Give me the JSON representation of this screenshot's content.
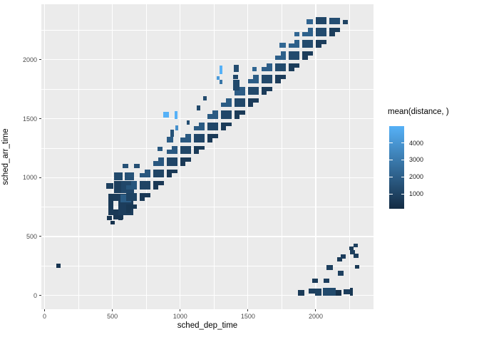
{
  "figure": {
    "background": "#FFFFFF",
    "panel_background": "#EBEBEB",
    "gridline_color": "#FFFFFF",
    "axis_text_color": "#4D4D4D",
    "axis_title_color": "#000000"
  },
  "chart_data": {
    "type": "heatmap",
    "title": "",
    "xlabel": "sched_dep_time",
    "ylabel": "sched_arr_time",
    "x_ticks": [
      0,
      500,
      1000,
      1500,
      2000
    ],
    "y_ticks": [
      0,
      500,
      1000,
      1500,
      2000
    ],
    "x_minor_ticks": [
      250,
      750,
      1250,
      1750,
      2250
    ],
    "y_minor_ticks": [
      250,
      750,
      1250,
      1750,
      2250
    ],
    "x_domain": [
      -24,
      2426
    ],
    "y_domain": [
      -117,
      2471
    ],
    "grid": "on",
    "legend": {
      "title": "mean(distance, )",
      "position": "right",
      "ticks": [
        1000,
        2000,
        3000,
        4000
      ],
      "domain": [
        132,
        4983
      ],
      "low_color": "#132B43",
      "high_color": "#56B1F7"
    },
    "tiles": [
      [
        470,
        680,
        505,
        865,
        700
      ],
      [
        545,
        680,
        655,
        865,
        800
      ],
      [
        505,
        680,
        545,
        730,
        650
      ],
      [
        505,
        800,
        545,
        865,
        750
      ],
      [
        560,
        790,
        640,
        858,
        1900
      ],
      [
        505,
        645,
        580,
        682,
        550
      ],
      [
        460,
        640,
        495,
        674,
        480
      ],
      [
        545,
        640,
        578,
        672,
        520
      ],
      [
        485,
        602,
        515,
        634,
        420
      ],
      [
        513,
        870,
        566,
        973,
        850
      ],
      [
        566,
        870,
        658,
        973,
        1150
      ],
      [
        513,
        975,
        575,
        1043,
        1250
      ],
      [
        590,
        975,
        658,
        1043,
        1500
      ],
      [
        455,
        905,
        505,
        955,
        900
      ],
      [
        600,
        700,
        640,
        770,
        590
      ],
      [
        640,
        735,
        678,
        770,
        590
      ],
      [
        600,
        800,
        678,
        870,
        1020
      ],
      [
        600,
        900,
        678,
        938,
        1680
      ],
      [
        640,
        938,
        678,
        970,
        1680
      ],
      [
        620,
        1000,
        656,
        1036,
        1600
      ],
      [
        576,
        1078,
        618,
        1114,
        1500
      ],
      [
        660,
        1080,
        700,
        1116,
        1450
      ],
      [
        700,
        800,
        740,
        870,
        605
      ],
      [
        740,
        835,
        778,
        870,
        605
      ],
      [
        700,
        900,
        778,
        970,
        1040
      ],
      [
        700,
        1000,
        778,
        1038,
        1710
      ],
      [
        740,
        1038,
        778,
        1070,
        1710
      ],
      [
        800,
        900,
        840,
        970,
        620
      ],
      [
        840,
        935,
        878,
        970,
        620
      ],
      [
        800,
        1000,
        878,
        1070,
        1060
      ],
      [
        800,
        1100,
        878,
        1138,
        1740
      ],
      [
        840,
        1138,
        878,
        1170,
        1740
      ],
      [
        835,
        1228,
        872,
        1262,
        1800
      ],
      [
        876,
        1510,
        918,
        1558,
        4983
      ],
      [
        900,
        1000,
        940,
        1070,
        635
      ],
      [
        940,
        1035,
        978,
        1070,
        635
      ],
      [
        900,
        1100,
        978,
        1170,
        1080
      ],
      [
        900,
        1200,
        978,
        1238,
        1770
      ],
      [
        940,
        1238,
        978,
        1270,
        1770
      ],
      [
        900,
        1300,
        948,
        1344,
        1900
      ],
      [
        928,
        1348,
        956,
        1404,
        1500
      ],
      [
        960,
        1498,
        981,
        1565,
        4983
      ],
      [
        963,
        1402,
        986,
        1445,
        3800
      ],
      [
        1000,
        1100,
        1040,
        1170,
        650
      ],
      [
        1040,
        1135,
        1078,
        1170,
        650
      ],
      [
        1000,
        1200,
        1078,
        1270,
        1100
      ],
      [
        1000,
        1300,
        1078,
        1338,
        1800
      ],
      [
        1040,
        1338,
        1078,
        1370,
        1800
      ],
      [
        1049,
        1448,
        1070,
        1483,
        1400
      ],
      [
        1100,
        1200,
        1140,
        1270,
        665
      ],
      [
        1140,
        1235,
        1178,
        1270,
        665
      ],
      [
        1100,
        1300,
        1178,
        1370,
        1120
      ],
      [
        1100,
        1400,
        1178,
        1438,
        1830
      ],
      [
        1140,
        1438,
        1178,
        1470,
        1830
      ],
      [
        1123,
        1573,
        1149,
        1610,
        1200
      ],
      [
        1200,
        1300,
        1240,
        1370,
        680
      ],
      [
        1240,
        1335,
        1278,
        1370,
        680
      ],
      [
        1200,
        1400,
        1278,
        1470,
        1140
      ],
      [
        1200,
        1500,
        1278,
        1538,
        1860
      ],
      [
        1240,
        1538,
        1278,
        1570,
        1860
      ],
      [
        1170,
        1653,
        1196,
        1690,
        1300
      ],
      [
        1291,
        1795,
        1313,
        1830,
        2800
      ],
      [
        1268,
        1830,
        1290,
        1862,
        4200
      ],
      [
        1292,
        1880,
        1314,
        1948,
        4983
      ],
      [
        1300,
        1400,
        1340,
        1470,
        695
      ],
      [
        1340,
        1435,
        1378,
        1470,
        695
      ],
      [
        1300,
        1500,
        1378,
        1570,
        1160
      ],
      [
        1300,
        1600,
        1378,
        1638,
        1890
      ],
      [
        1340,
        1638,
        1378,
        1670,
        1890
      ],
      [
        1390,
        1740,
        1440,
        1828,
        1250
      ],
      [
        1390,
        1838,
        1426,
        1870,
        1150
      ],
      [
        1394,
        1898,
        1430,
        1958,
        1350
      ],
      [
        1400,
        1500,
        1440,
        1570,
        710
      ],
      [
        1440,
        1535,
        1478,
        1570,
        710
      ],
      [
        1400,
        1600,
        1478,
        1670,
        1180
      ],
      [
        1400,
        1700,
        1478,
        1738,
        1920
      ],
      [
        1440,
        1738,
        1478,
        1770,
        1920
      ],
      [
        1500,
        1600,
        1540,
        1670,
        725
      ],
      [
        1540,
        1635,
        1578,
        1670,
        725
      ],
      [
        1500,
        1700,
        1578,
        1770,
        1200
      ],
      [
        1500,
        1800,
        1578,
        1838,
        1950
      ],
      [
        1540,
        1838,
        1578,
        1870,
        1950
      ],
      [
        1530,
        1900,
        1566,
        1936,
        2250
      ],
      [
        1600,
        1700,
        1640,
        1770,
        740
      ],
      [
        1640,
        1735,
        1678,
        1770,
        740
      ],
      [
        1600,
        1800,
        1678,
        1870,
        1220
      ],
      [
        1600,
        1900,
        1678,
        1938,
        1980
      ],
      [
        1640,
        1938,
        1678,
        1970,
        1980
      ],
      [
        1700,
        1800,
        1740,
        1870,
        755
      ],
      [
        1740,
        1835,
        1778,
        1870,
        755
      ],
      [
        1700,
        1900,
        1778,
        1970,
        1240
      ],
      [
        1700,
        2000,
        1778,
        2038,
        2010
      ],
      [
        1740,
        2038,
        1778,
        2070,
        2010
      ],
      [
        1730,
        2100,
        1778,
        2144,
        2300
      ],
      [
        1800,
        1900,
        1840,
        1970,
        770
      ],
      [
        1840,
        1935,
        1878,
        1970,
        770
      ],
      [
        1800,
        2000,
        1878,
        2070,
        1260
      ],
      [
        1800,
        2100,
        1878,
        2138,
        2040
      ],
      [
        1840,
        2138,
        1878,
        2170,
        2040
      ],
      [
        1840,
        2200,
        1878,
        2238,
        2300
      ],
      [
        1900,
        2000,
        1940,
        2070,
        785
      ],
      [
        1940,
        2035,
        1978,
        2070,
        785
      ],
      [
        1900,
        2100,
        1978,
        2170,
        1280
      ],
      [
        1900,
        2200,
        1978,
        2238,
        2070
      ],
      [
        1940,
        2238,
        1978,
        2270,
        2070
      ],
      [
        1932,
        2300,
        1978,
        2344,
        2200
      ],
      [
        2000,
        2100,
        2040,
        2170,
        800
      ],
      [
        2040,
        2135,
        2078,
        2170,
        800
      ],
      [
        2000,
        2200,
        2078,
        2270,
        1300
      ],
      [
        2000,
        2300,
        2078,
        2360,
        1100
      ],
      [
        2100,
        2200,
        2140,
        2270,
        815
      ],
      [
        2140,
        2235,
        2178,
        2270,
        815
      ],
      [
        2100,
        2300,
        2178,
        2358,
        1400
      ],
      [
        2200,
        2300,
        2236,
        2340,
        1000
      ],
      [
        1870,
        0,
        1914,
        46,
        700
      ],
      [
        1950,
        14,
        1996,
        60,
        850
      ],
      [
        1996,
        0,
        2042,
        60,
        950
      ],
      [
        2055,
        0,
        2145,
        62,
        1250
      ],
      [
        2145,
        0,
        2188,
        44,
        350
      ],
      [
        2205,
        8,
        2250,
        52,
        800
      ],
      [
        2250,
        0,
        2272,
        62,
        600
      ],
      [
        1975,
        104,
        2018,
        146,
        700
      ],
      [
        2060,
        104,
        2100,
        146,
        800
      ],
      [
        2080,
        216,
        2126,
        258,
        900
      ],
      [
        2165,
        165,
        2205,
        208,
        900
      ],
      [
        2160,
        290,
        2196,
        324,
        700
      ],
      [
        2186,
        315,
        2220,
        350,
        800
      ],
      [
        2255,
        350,
        2290,
        384,
        900
      ],
      [
        2280,
        320,
        2316,
        352,
        800
      ],
      [
        2245,
        384,
        2280,
        416,
        700
      ],
      [
        2280,
        408,
        2312,
        438,
        900
      ],
      [
        2290,
        225,
        2320,
        256,
        600
      ],
      [
        88,
        234,
        120,
        268,
        500
      ]
    ]
  }
}
